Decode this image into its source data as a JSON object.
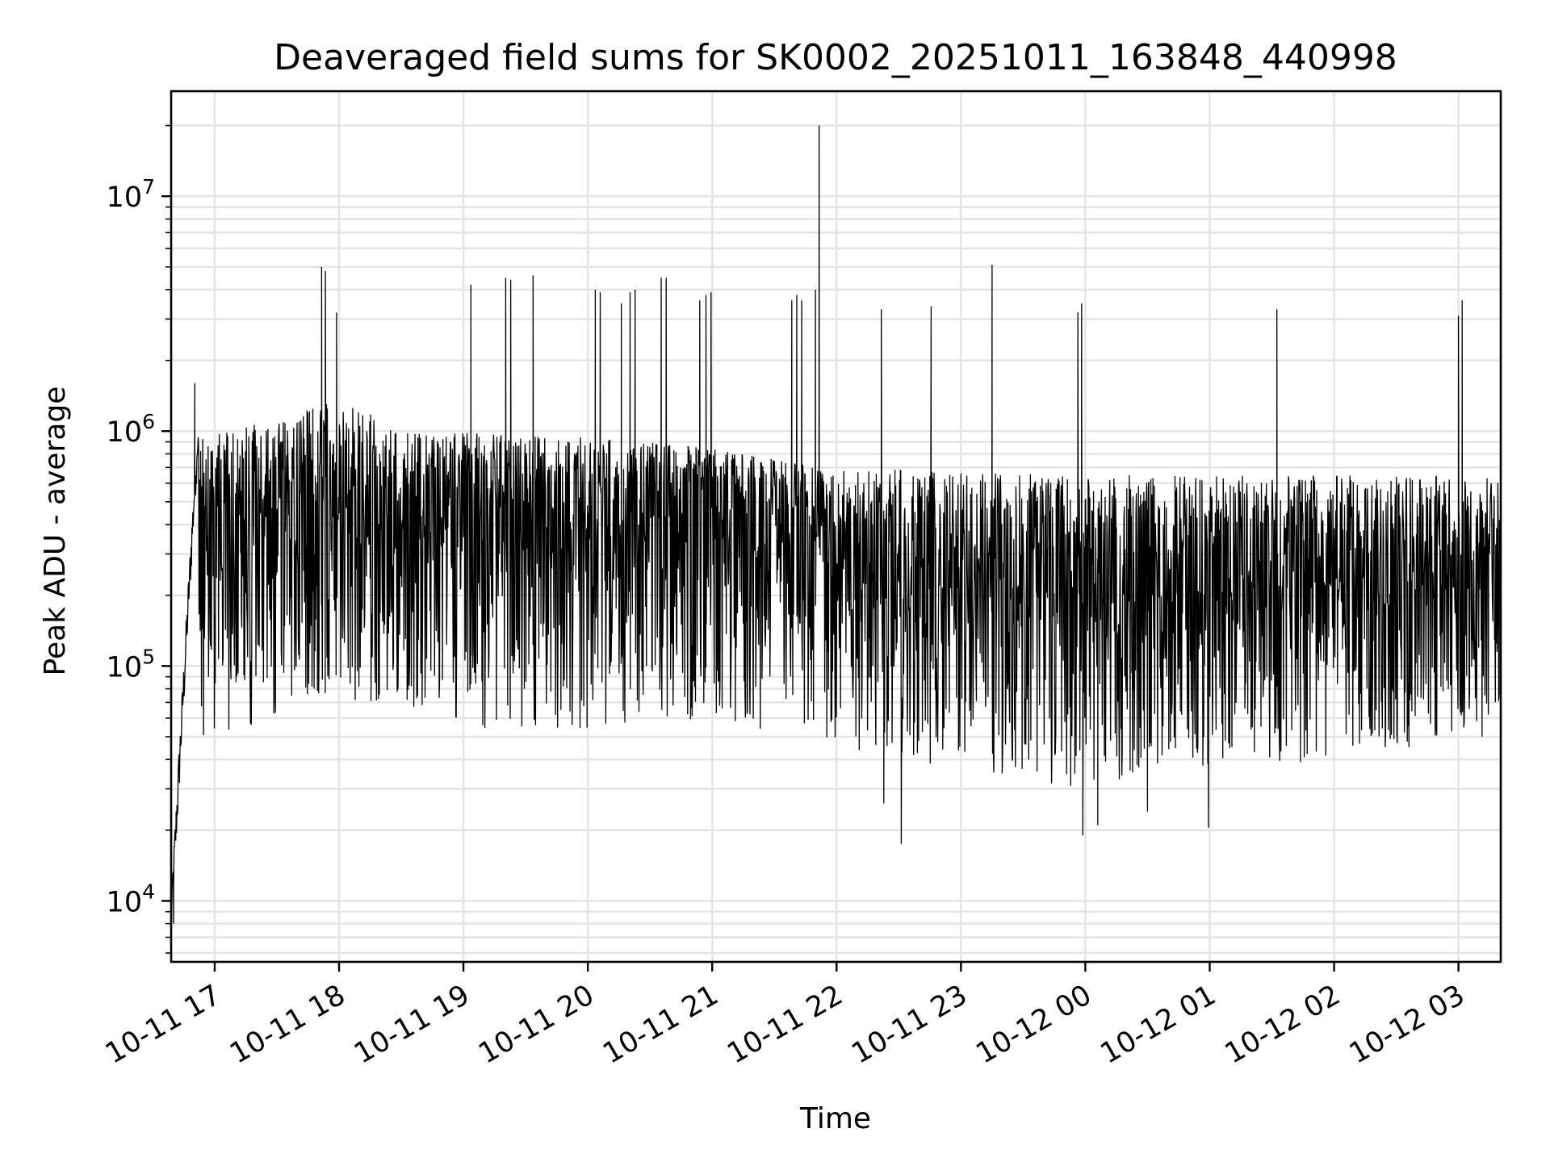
{
  "chart_data": {
    "type": "line",
    "title": "Deaveraged field sums for SK0002_20251011_163848_440998",
    "xlabel": "Time",
    "ylabel": "Peak ADU - average",
    "yscale": "log",
    "xlim_hours": [
      16.65,
      27.34
    ],
    "ylim": [
      5500,
      28000000
    ],
    "x_ticks": [
      {
        "label": "10-11 17",
        "hour": 17
      },
      {
        "label": "10-11 18",
        "hour": 18
      },
      {
        "label": "10-11 19",
        "hour": 19
      },
      {
        "label": "10-11 20",
        "hour": 20
      },
      {
        "label": "10-11 21",
        "hour": 21
      },
      {
        "label": "10-11 22",
        "hour": 22
      },
      {
        "label": "10-11 23",
        "hour": 23
      },
      {
        "label": "10-12 00",
        "hour": 24
      },
      {
        "label": "10-12 01",
        "hour": 25
      },
      {
        "label": "10-12 02",
        "hour": 26
      },
      {
        "label": "10-12 03",
        "hour": 27
      }
    ],
    "y_ticks": [
      {
        "base": "10",
        "exp": "4",
        "value": 10000
      },
      {
        "base": "10",
        "exp": "5",
        "value": 100000
      },
      {
        "base": "10",
        "exp": "6",
        "value": 1000000
      },
      {
        "base": "10",
        "exp": "7",
        "value": 10000000
      }
    ],
    "series": [
      {
        "name": "deaveraged field sums",
        "color": "#000000",
        "baseline_points": [
          {
            "hour": 16.65,
            "value": 8000
          },
          {
            "hour": 16.72,
            "value": 40000
          },
          {
            "hour": 16.78,
            "value": 150000
          },
          {
            "hour": 16.85,
            "value": 700000
          },
          {
            "hour": 17.0,
            "value": 400000
          },
          {
            "hour": 17.5,
            "value": 350000
          },
          {
            "hour": 18.0,
            "value": 450000
          },
          {
            "hour": 19.0,
            "value": 380000
          },
          {
            "hour": 20.0,
            "value": 420000
          },
          {
            "hour": 21.0,
            "value": 500000
          },
          {
            "hour": 21.8,
            "value": 380000
          },
          {
            "hour": 22.5,
            "value": 230000
          },
          {
            "hour": 24.0,
            "value": 200000
          },
          {
            "hour": 25.0,
            "value": 210000
          },
          {
            "hour": 26.0,
            "value": 230000
          },
          {
            "hour": 27.34,
            "value": 240000
          }
        ],
        "upper_envelope": [
          {
            "hour": 16.9,
            "value": 1000000
          },
          {
            "hour": 17.5,
            "value": 1100000
          },
          {
            "hour": 18.0,
            "value": 1400000
          },
          {
            "hour": 18.5,
            "value": 1000000
          },
          {
            "hour": 20.0,
            "value": 950000
          },
          {
            "hour": 21.0,
            "value": 850000
          },
          {
            "hour": 21.9,
            "value": 700000
          },
          {
            "hour": 24.0,
            "value": 650000
          },
          {
            "hour": 27.34,
            "value": 650000
          }
        ],
        "lower_envelope": [
          {
            "hour": 17.1,
            "value": 50000
          },
          {
            "hour": 18.0,
            "value": 70000
          },
          {
            "hour": 19.5,
            "value": 50000
          },
          {
            "hour": 21.0,
            "value": 60000
          },
          {
            "hour": 22.5,
            "value": 40000
          },
          {
            "hour": 24.0,
            "value": 30000
          },
          {
            "hour": 25.0,
            "value": 35000
          },
          {
            "hour": 26.0,
            "value": 40000
          },
          {
            "hour": 27.34,
            "value": 50000
          }
        ],
        "spikes": [
          {
            "hour": 16.84,
            "value": 1600000
          },
          {
            "hour": 17.86,
            "value": 5000000
          },
          {
            "hour": 17.89,
            "value": 4800000
          },
          {
            "hour": 17.98,
            "value": 3200000
          },
          {
            "hour": 19.06,
            "value": 4200000
          },
          {
            "hour": 19.34,
            "value": 4500000
          },
          {
            "hour": 19.38,
            "value": 4400000
          },
          {
            "hour": 19.56,
            "value": 4600000
          },
          {
            "hour": 20.06,
            "value": 4000000
          },
          {
            "hour": 20.1,
            "value": 3900000
          },
          {
            "hour": 20.27,
            "value": 3500000
          },
          {
            "hour": 20.34,
            "value": 3900000
          },
          {
            "hour": 20.38,
            "value": 4000000
          },
          {
            "hour": 20.59,
            "value": 4500000
          },
          {
            "hour": 20.63,
            "value": 4500000
          },
          {
            "hour": 20.9,
            "value": 3600000
          },
          {
            "hour": 20.95,
            "value": 3800000
          },
          {
            "hour": 20.99,
            "value": 3900000
          },
          {
            "hour": 21.64,
            "value": 3600000
          },
          {
            "hour": 21.68,
            "value": 3800000
          },
          {
            "hour": 21.72,
            "value": 3600000
          },
          {
            "hour": 21.83,
            "value": 4000000
          },
          {
            "hour": 21.86,
            "value": 20000000
          },
          {
            "hour": 22.36,
            "value": 3300000
          },
          {
            "hour": 22.76,
            "value": 3400000
          },
          {
            "hour": 23.25,
            "value": 5100000
          },
          {
            "hour": 23.94,
            "value": 3200000
          },
          {
            "hour": 23.97,
            "value": 3500000
          },
          {
            "hour": 25.54,
            "value": 3300000
          },
          {
            "hour": 27.0,
            "value": 3100000
          },
          {
            "hour": 27.03,
            "value": 3600000
          }
        ],
        "dips": [
          {
            "hour": 16.67,
            "value": 8000
          },
          {
            "hour": 22.52,
            "value": 17500
          },
          {
            "hour": 23.98,
            "value": 19000
          },
          {
            "hour": 24.1,
            "value": 21000
          },
          {
            "hour": 24.99,
            "value": 20500
          },
          {
            "hour": 22.38,
            "value": 26000
          },
          {
            "hour": 24.5,
            "value": 24000
          }
        ]
      }
    ]
  }
}
